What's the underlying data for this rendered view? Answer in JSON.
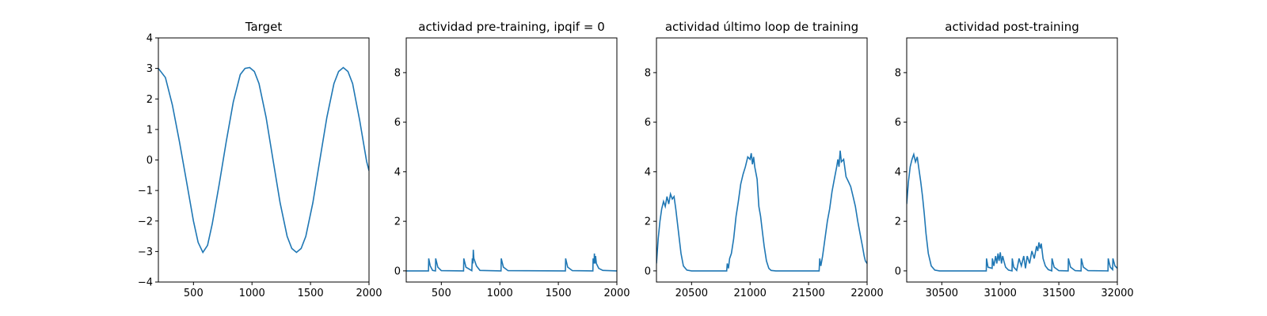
{
  "chart_data": [
    {
      "type": "line",
      "title": "Target",
      "xlim": [
        200,
        2000
      ],
      "ylim": [
        -4,
        4
      ],
      "xticks": [
        500,
        1000,
        1500,
        2000
      ],
      "yticks": [
        -4,
        -3,
        -2,
        -1,
        0,
        1,
        2,
        3,
        4
      ],
      "line_color": "#1f77b4",
      "series": [
        {
          "x": [
            200,
            260,
            320,
            380,
            440,
            500,
            540,
            580,
            620,
            660,
            720,
            780,
            840,
            900,
            940,
            980,
            1020,
            1060,
            1120,
            1180,
            1240,
            1300,
            1340,
            1380,
            1420,
            1460,
            1520,
            1580,
            1640,
            1700,
            1740,
            1780,
            1820,
            1860,
            1920,
            1980,
            2000
          ],
          "y": [
            3.0,
            2.7,
            1.8,
            0.6,
            -0.7,
            -2.0,
            -2.7,
            -3.03,
            -2.8,
            -2.1,
            -0.8,
            0.6,
            1.9,
            2.8,
            3.0,
            3.03,
            2.9,
            2.5,
            1.4,
            0.0,
            -1.4,
            -2.5,
            -2.9,
            -3.03,
            -2.9,
            -2.5,
            -1.4,
            0.0,
            1.4,
            2.5,
            2.9,
            3.03,
            2.9,
            2.5,
            1.3,
            -0.05,
            -0.35
          ]
        }
      ]
    },
    {
      "type": "line",
      "title": "actividad pre-training, ipqif = 0",
      "xlim": [
        200,
        2000
      ],
      "ylim": [
        -0.45,
        9.4
      ],
      "xticks": [
        500,
        1000,
        1500,
        2000
      ],
      "yticks": [
        0,
        2,
        4,
        6,
        8
      ],
      "line_color": "#1f77b4",
      "series": [
        {
          "x": [
            200,
            390,
            392,
            405,
            425,
            450,
            452,
            470,
            500,
            690,
            692,
            710,
            760,
            765,
            770,
            773,
            778,
            785,
            800,
            830,
            1010,
            1012,
            1030,
            1070,
            1560,
            1562,
            1580,
            1620,
            1795,
            1797,
            1805,
            1808,
            1812,
            1818,
            1825,
            1845,
            1880,
            2000
          ],
          "y": [
            0,
            0,
            0.5,
            0.2,
            0.02,
            0,
            0.5,
            0.15,
            0.01,
            0,
            0.5,
            0.15,
            0.01,
            0.5,
            0.3,
            0.85,
            0.5,
            0.4,
            0.2,
            0.02,
            0,
            0.5,
            0.15,
            0.01,
            0,
            0.5,
            0.15,
            0.01,
            0,
            0.5,
            0.3,
            0.7,
            0.3,
            0.6,
            0.3,
            0.1,
            0.02,
            0
          ]
        }
      ]
    },
    {
      "type": "line",
      "title": "actividad último loop de training",
      "xlim": [
        20200,
        22000
      ],
      "ylim": [
        -0.45,
        9.4
      ],
      "xticks": [
        20500,
        21000,
        21500,
        22000
      ],
      "yticks": [
        0,
        2,
        4,
        6,
        8
      ],
      "line_color": "#1f77b4",
      "series": [
        {
          "x": [
            20200,
            20215,
            20230,
            20245,
            20260,
            20275,
            20290,
            20305,
            20320,
            20335,
            20350,
            20365,
            20380,
            20395,
            20410,
            20430,
            20460,
            20500,
            20800,
            20805,
            20815,
            20825,
            20840,
            20860,
            20880,
            20900,
            20920,
            20940,
            20960,
            20980,
            21000,
            21010,
            21020,
            21030,
            21040,
            21060,
            21075,
            21090,
            21105,
            21120,
            21140,
            21160,
            21180,
            21220,
            21590,
            21595,
            21605,
            21620,
            21640,
            21660,
            21680,
            21700,
            21720,
            21740,
            21750,
            21760,
            21770,
            21780,
            21800,
            21820,
            21840,
            21860,
            21880,
            21900,
            21920,
            21940,
            21960,
            21975,
            21985,
            22000
          ],
          "y": [
            0.3,
            1.3,
            2.0,
            2.5,
            2.8,
            2.6,
            3.0,
            2.7,
            3.1,
            2.9,
            3.0,
            2.5,
            1.9,
            1.3,
            0.7,
            0.2,
            0.03,
            0,
            0,
            0.3,
            0.1,
            0.5,
            0.7,
            1.3,
            2.2,
            2.8,
            3.5,
            3.9,
            4.2,
            4.6,
            4.5,
            4.75,
            4.3,
            4.6,
            4.2,
            3.7,
            2.6,
            2.2,
            1.6,
            1.0,
            0.4,
            0.1,
            0.02,
            0,
            0,
            0.5,
            0.2,
            0.6,
            1.3,
            2.0,
            2.5,
            3.2,
            3.7,
            4.2,
            4.5,
            4.2,
            4.85,
            4.4,
            4.5,
            3.8,
            3.6,
            3.4,
            3.0,
            2.6,
            2.0,
            1.5,
            1.0,
            0.6,
            0.4,
            0.3
          ]
        }
      ]
    },
    {
      "type": "line",
      "title": "actividad post-training",
      "xlim": [
        30200,
        32000
      ],
      "ylim": [
        -0.45,
        9.4
      ],
      "xticks": [
        30500,
        31000,
        31500,
        32000
      ],
      "yticks": [
        0,
        2,
        4,
        6,
        8
      ],
      "line_color": "#1f77b4",
      "series": [
        {
          "x": [
            30200,
            30215,
            30230,
            30245,
            30260,
            30275,
            30290,
            30305,
            30320,
            30335,
            30350,
            30365,
            30385,
            30410,
            30440,
            30480,
            30880,
            30882,
            30895,
            30930,
            30932,
            30945,
            30960,
            30970,
            30980,
            30990,
            31000,
            31010,
            31020,
            31030,
            31045,
            31070,
            31100,
            31102,
            31115,
            31140,
            31160,
            31180,
            31200,
            31215,
            31230,
            31250,
            31270,
            31290,
            31310,
            31320,
            31330,
            31340,
            31350,
            31365,
            31385,
            31410,
            31440,
            31442,
            31460,
            31500,
            31580,
            31582,
            31600,
            31640,
            31690,
            31692,
            31710,
            31750,
            31920,
            31922,
            31940,
            31960,
            31962,
            31980,
            32000
          ],
          "y": [
            2.7,
            3.6,
            4.2,
            4.5,
            4.7,
            4.4,
            4.6,
            4.1,
            3.6,
            3.0,
            2.3,
            1.5,
            0.7,
            0.2,
            0.03,
            0,
            0,
            0.5,
            0.15,
            0.1,
            0.5,
            0.2,
            0.6,
            0.3,
            0.7,
            0.4,
            0.75,
            0.3,
            0.6,
            0.4,
            0.15,
            0.03,
            0,
            0.5,
            0.15,
            0.02,
            0.5,
            0.2,
            0.6,
            0.1,
            0.6,
            0.3,
            0.8,
            0.5,
            1.0,
            0.8,
            1.15,
            0.9,
            1.1,
            0.5,
            0.2,
            0.05,
            0,
            0.5,
            0.15,
            0.01,
            0,
            0.5,
            0.15,
            0.01,
            0,
            0.5,
            0.15,
            0.01,
            0,
            0.5,
            0.15,
            0.05,
            0.5,
            0.2,
            0.1
          ]
        }
      ]
    }
  ]
}
